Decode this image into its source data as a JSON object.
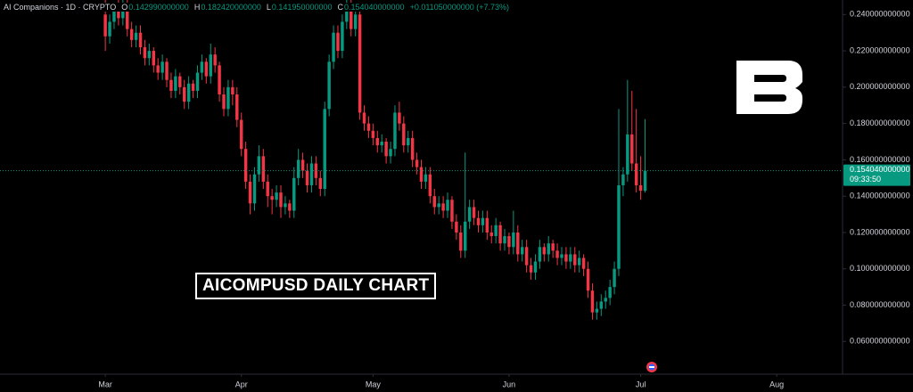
{
  "chart_data": {
    "type": "candlestick",
    "title": "AI Companions · 1D · CRYPTO",
    "ohlc": [
      {
        "key": "O",
        "value": 0.14299,
        "label": "0.142990000000"
      },
      {
        "key": "H",
        "value": 0.18242,
        "label": "0.182420000000"
      },
      {
        "key": "L",
        "value": 0.14195,
        "label": "0.141950000000"
      },
      {
        "key": "C",
        "value": 0.15404,
        "label": "0.154040000000"
      }
    ],
    "change": {
      "value": 0.01105,
      "label": "+0.011050000000 (+7.73%)"
    },
    "annotation": "AICOMPUSD DAILY CHART",
    "last_price": {
      "value": 0.15404,
      "label": "0.154040000000"
    },
    "countdown": "09:33:50",
    "up_color": "#089981",
    "down_color": "#f23645",
    "ylim": [
      0.042,
      0.248
    ],
    "yticks": [
      {
        "value": 0.06,
        "label": "0.060000000000"
      },
      {
        "value": 0.08,
        "label": "0.080000000000"
      },
      {
        "value": 0.1,
        "label": "0.100000000000"
      },
      {
        "value": 0.12,
        "label": "0.120000000000"
      },
      {
        "value": 0.14,
        "label": "0.140000000000"
      },
      {
        "value": 0.16,
        "label": "0.160000000000"
      },
      {
        "value": 0.18,
        "label": "0.180000000000"
      },
      {
        "value": 0.2,
        "label": "0.200000000000"
      },
      {
        "value": 0.22,
        "label": "0.220000000000"
      },
      {
        "value": 0.24,
        "label": "0.240000000000"
      }
    ],
    "xlim": [
      -24,
      168
    ],
    "xticks": [
      {
        "value": 0,
        "label": "Mar"
      },
      {
        "value": 31,
        "label": "Apr"
      },
      {
        "value": 61,
        "label": "May"
      },
      {
        "value": 92,
        "label": "Jun"
      },
      {
        "value": 122,
        "label": "Jul"
      },
      {
        "value": 153,
        "label": "Aug"
      }
    ],
    "candles": [
      [
        0.24,
        0.248,
        0.22,
        0.228
      ],
      [
        0.228,
        0.24,
        0.224,
        0.236
      ],
      [
        0.236,
        0.246,
        0.232,
        0.242
      ],
      [
        0.242,
        0.248,
        0.234,
        0.238
      ],
      [
        0.238,
        0.25,
        0.234,
        0.245
      ],
      [
        0.245,
        0.248,
        0.228,
        0.232
      ],
      [
        0.232,
        0.236,
        0.222,
        0.226
      ],
      [
        0.226,
        0.234,
        0.222,
        0.23
      ],
      [
        0.23,
        0.234,
        0.218,
        0.222
      ],
      [
        0.222,
        0.226,
        0.212,
        0.216
      ],
      [
        0.216,
        0.224,
        0.212,
        0.22
      ],
      [
        0.22,
        0.222,
        0.208,
        0.212
      ],
      [
        0.212,
        0.216,
        0.204,
        0.208
      ],
      [
        0.208,
        0.218,
        0.204,
        0.214
      ],
      [
        0.214,
        0.216,
        0.2,
        0.204
      ],
      [
        0.204,
        0.208,
        0.194,
        0.198
      ],
      [
        0.198,
        0.21,
        0.194,
        0.206
      ],
      [
        0.206,
        0.208,
        0.196,
        0.2
      ],
      [
        0.2,
        0.204,
        0.188,
        0.192
      ],
      [
        0.192,
        0.206,
        0.188,
        0.202
      ],
      [
        0.202,
        0.204,
        0.194,
        0.198
      ],
      [
        0.198,
        0.212,
        0.194,
        0.208
      ],
      [
        0.208,
        0.218,
        0.204,
        0.214
      ],
      [
        0.214,
        0.216,
        0.202,
        0.206
      ],
      [
        0.206,
        0.224,
        0.202,
        0.218
      ],
      [
        0.218,
        0.222,
        0.208,
        0.212
      ],
      [
        0.212,
        0.214,
        0.192,
        0.196
      ],
      [
        0.196,
        0.2,
        0.184,
        0.188
      ],
      [
        0.188,
        0.204,
        0.184,
        0.2
      ],
      [
        0.2,
        0.204,
        0.19,
        0.196
      ],
      [
        0.196,
        0.2,
        0.178,
        0.182
      ],
      [
        0.182,
        0.186,
        0.162,
        0.166
      ],
      [
        0.166,
        0.17,
        0.144,
        0.148
      ],
      [
        0.148,
        0.152,
        0.13,
        0.136
      ],
      [
        0.136,
        0.156,
        0.132,
        0.152
      ],
      [
        0.152,
        0.168,
        0.148,
        0.162
      ],
      [
        0.162,
        0.166,
        0.144,
        0.148
      ],
      [
        0.148,
        0.152,
        0.134,
        0.14
      ],
      [
        0.14,
        0.144,
        0.13,
        0.138
      ],
      [
        0.138,
        0.146,
        0.134,
        0.142
      ],
      [
        0.142,
        0.146,
        0.128,
        0.134
      ],
      [
        0.134,
        0.14,
        0.13,
        0.136
      ],
      [
        0.136,
        0.138,
        0.128,
        0.132
      ],
      [
        0.132,
        0.156,
        0.128,
        0.15
      ],
      [
        0.15,
        0.166,
        0.146,
        0.16
      ],
      [
        0.16,
        0.164,
        0.15,
        0.154
      ],
      [
        0.154,
        0.158,
        0.142,
        0.146
      ],
      [
        0.146,
        0.162,
        0.142,
        0.158
      ],
      [
        0.158,
        0.162,
        0.146,
        0.15
      ],
      [
        0.15,
        0.154,
        0.14,
        0.144
      ],
      [
        0.144,
        0.192,
        0.14,
        0.188
      ],
      [
        0.188,
        0.218,
        0.184,
        0.214
      ],
      [
        0.214,
        0.234,
        0.21,
        0.23
      ],
      [
        0.23,
        0.234,
        0.216,
        0.22
      ],
      [
        0.22,
        0.24,
        0.216,
        0.236
      ],
      [
        0.236,
        0.248,
        0.232,
        0.244
      ],
      [
        0.244,
        0.248,
        0.228,
        0.232
      ],
      [
        0.232,
        0.246,
        0.228,
        0.24
      ],
      [
        0.24,
        0.244,
        0.182,
        0.186
      ],
      [
        0.186,
        0.19,
        0.176,
        0.18
      ],
      [
        0.18,
        0.184,
        0.172,
        0.176
      ],
      [
        0.176,
        0.18,
        0.168,
        0.172
      ],
      [
        0.172,
        0.176,
        0.164,
        0.168
      ],
      [
        0.168,
        0.174,
        0.164,
        0.17
      ],
      [
        0.17,
        0.172,
        0.158,
        0.162
      ],
      [
        0.162,
        0.17,
        0.158,
        0.166
      ],
      [
        0.166,
        0.19,
        0.162,
        0.186
      ],
      [
        0.186,
        0.192,
        0.176,
        0.18
      ],
      [
        0.18,
        0.184,
        0.164,
        0.168
      ],
      [
        0.168,
        0.176,
        0.164,
        0.172
      ],
      [
        0.172,
        0.176,
        0.156,
        0.16
      ],
      [
        0.16,
        0.164,
        0.152,
        0.156
      ],
      [
        0.156,
        0.16,
        0.144,
        0.148
      ],
      [
        0.148,
        0.156,
        0.144,
        0.152
      ],
      [
        0.152,
        0.156,
        0.136,
        0.14
      ],
      [
        0.14,
        0.144,
        0.13,
        0.134
      ],
      [
        0.134,
        0.14,
        0.13,
        0.136
      ],
      [
        0.136,
        0.14,
        0.128,
        0.132
      ],
      [
        0.132,
        0.142,
        0.128,
        0.138
      ],
      [
        0.138,
        0.14,
        0.122,
        0.126
      ],
      [
        0.126,
        0.13,
        0.116,
        0.12
      ],
      [
        0.12,
        0.124,
        0.106,
        0.11
      ],
      [
        0.11,
        0.164,
        0.106,
        0.126
      ],
      [
        0.126,
        0.138,
        0.122,
        0.134
      ],
      [
        0.134,
        0.138,
        0.124,
        0.128
      ],
      [
        0.128,
        0.132,
        0.12,
        0.124
      ],
      [
        0.124,
        0.132,
        0.12,
        0.128
      ],
      [
        0.128,
        0.132,
        0.116,
        0.12
      ],
      [
        0.12,
        0.124,
        0.114,
        0.118
      ],
      [
        0.118,
        0.128,
        0.114,
        0.124
      ],
      [
        0.124,
        0.126,
        0.11,
        0.114
      ],
      [
        0.114,
        0.122,
        0.11,
        0.118
      ],
      [
        0.118,
        0.12,
        0.108,
        0.112
      ],
      [
        0.112,
        0.132,
        0.108,
        0.12
      ],
      [
        0.12,
        0.124,
        0.104,
        0.108
      ],
      [
        0.108,
        0.116,
        0.104,
        0.112
      ],
      [
        0.112,
        0.116,
        0.098,
        0.102
      ],
      [
        0.102,
        0.106,
        0.094,
        0.098
      ],
      [
        0.098,
        0.108,
        0.094,
        0.104
      ],
      [
        0.104,
        0.116,
        0.1,
        0.112
      ],
      [
        0.112,
        0.114,
        0.104,
        0.108
      ],
      [
        0.108,
        0.118,
        0.104,
        0.114
      ],
      [
        0.114,
        0.116,
        0.106,
        0.11
      ],
      [
        0.11,
        0.114,
        0.102,
        0.106
      ],
      [
        0.106,
        0.112,
        0.102,
        0.108
      ],
      [
        0.108,
        0.112,
        0.1,
        0.104
      ],
      [
        0.104,
        0.112,
        0.1,
        0.108
      ],
      [
        0.108,
        0.112,
        0.098,
        0.102
      ],
      [
        0.102,
        0.11,
        0.098,
        0.106
      ],
      [
        0.106,
        0.108,
        0.096,
        0.1
      ],
      [
        0.1,
        0.104,
        0.084,
        0.088
      ],
      [
        0.088,
        0.092,
        0.072,
        0.076
      ],
      [
        0.076,
        0.082,
        0.072,
        0.078
      ],
      [
        0.078,
        0.086,
        0.074,
        0.082
      ],
      [
        0.082,
        0.088,
        0.078,
        0.084
      ],
      [
        0.084,
        0.094,
        0.08,
        0.09
      ],
      [
        0.09,
        0.104,
        0.086,
        0.1
      ],
      [
        0.1,
        0.188,
        0.096,
        0.146
      ],
      [
        0.146,
        0.156,
        0.14,
        0.152
      ],
      [
        0.152,
        0.204,
        0.148,
        0.174
      ],
      [
        0.174,
        0.198,
        0.154,
        0.158
      ],
      [
        0.158,
        0.188,
        0.142,
        0.146
      ],
      [
        0.146,
        0.162,
        0.138,
        0.143
      ],
      [
        0.14299,
        0.18242,
        0.14195,
        0.15404
      ]
    ]
  }
}
